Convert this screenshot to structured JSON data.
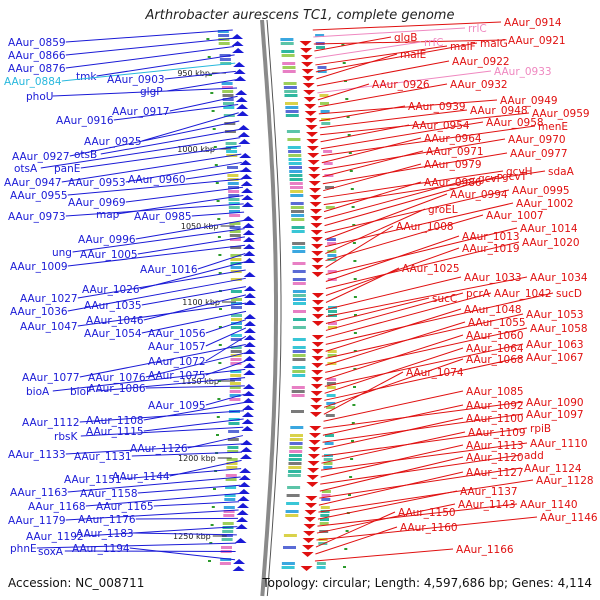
{
  "title": "Arthrobacter aurescens TC1, complete genome",
  "footer": {
    "accession": "Accession: NC_008711",
    "topology": "Topology: circular; Length: 4,597,686 bp; Genes: 4,114"
  },
  "colors": {
    "left_strand": "#1a1ad6",
    "right_strand": "#e01010",
    "rna_label": "#27b8dd",
    "pink_label": "#ef88c0",
    "backbone": "#8a8a8a",
    "tick_text": "#222222"
  },
  "kbp_ticks": [
    {
      "label": "950 kbp"
    },
    {
      "label": "1000 kbp"
    },
    {
      "label": "1050 kbp"
    },
    {
      "label": "1100 kbp"
    },
    {
      "label": "1150 kbp"
    },
    {
      "label": "1200 kbp"
    },
    {
      "label": "1250 kbp"
    }
  ],
  "left_labels": [
    {
      "text": "AAur_0859",
      "color": "left"
    },
    {
      "text": "AAur_0866",
      "color": "left"
    },
    {
      "text": "AAur_0876",
      "color": "left"
    },
    {
      "text": "tmk",
      "color": "left"
    },
    {
      "text": "AAur_0884",
      "color": "rna"
    },
    {
      "text": "AAur_0903",
      "color": "left"
    },
    {
      "text": "glgP",
      "color": "left"
    },
    {
      "text": "phoU",
      "color": "left"
    },
    {
      "text": "AAur_0917",
      "color": "left"
    },
    {
      "text": "AAur_0916",
      "color": "left"
    },
    {
      "text": "AAur_0925",
      "color": "left"
    },
    {
      "text": "AAur_0927",
      "color": "left"
    },
    {
      "text": "otsB",
      "color": "left"
    },
    {
      "text": "otsA",
      "color": "left"
    },
    {
      "text": "panE",
      "color": "left"
    },
    {
      "text": "AAur_0947",
      "color": "left"
    },
    {
      "text": "AAur_0953",
      "color": "left"
    },
    {
      "text": "AAur_0960",
      "color": "left"
    },
    {
      "text": "AAur_0955",
      "color": "left"
    },
    {
      "text": "AAur_0969",
      "color": "left"
    },
    {
      "text": "map",
      "color": "left"
    },
    {
      "text": "AAur_0973",
      "color": "left"
    },
    {
      "text": "AAur_0985",
      "color": "left"
    },
    {
      "text": "AAur_0996",
      "color": "left"
    },
    {
      "text": "ung",
      "color": "left"
    },
    {
      "text": "AAur_1005",
      "color": "left"
    },
    {
      "text": "AAur_1009",
      "color": "left"
    },
    {
      "text": "AAur_1016",
      "color": "left"
    },
    {
      "text": "AAur_1026",
      "color": "left"
    },
    {
      "text": "AAur_1027",
      "color": "left"
    },
    {
      "text": "AAur_1036",
      "color": "left"
    },
    {
      "text": "AAur_1035",
      "color": "left"
    },
    {
      "text": "AAur_1046",
      "color": "left"
    },
    {
      "text": "AAur_1047",
      "color": "left"
    },
    {
      "text": "AAur_1054",
      "color": "left"
    },
    {
      "text": "AAur_1056",
      "color": "left"
    },
    {
      "text": "AAur_1057",
      "color": "left"
    },
    {
      "text": "AAur_1072",
      "color": "left"
    },
    {
      "text": "AAur_1077",
      "color": "left"
    },
    {
      "text": "AAur_1076",
      "color": "left"
    },
    {
      "text": "AAur_1075",
      "color": "left"
    },
    {
      "text": "bioA",
      "color": "left"
    },
    {
      "text": "bioF",
      "color": "left"
    },
    {
      "text": "AAur_1086",
      "color": "left"
    },
    {
      "text": "AAur_1095",
      "color": "left"
    },
    {
      "text": "AAur_1108",
      "color": "left"
    },
    {
      "text": "AAur_1112",
      "color": "left"
    },
    {
      "text": "AAur_1115",
      "color": "left"
    },
    {
      "text": "rbsK",
      "color": "left"
    },
    {
      "text": "AAur_1126",
      "color": "left"
    },
    {
      "text": "AAur_1133",
      "color": "left"
    },
    {
      "text": "AAur_1131",
      "color": "left"
    },
    {
      "text": "AAur_1144",
      "color": "left"
    },
    {
      "text": "AAur_1151",
      "color": "left"
    },
    {
      "text": "AAur_1163",
      "color": "left"
    },
    {
      "text": "AAur_1158",
      "color": "left"
    },
    {
      "text": "AAur_1168",
      "color": "left"
    },
    {
      "text": "AAur_1165",
      "color": "left"
    },
    {
      "text": "AAur_1179",
      "color": "left"
    },
    {
      "text": "AAur_1176",
      "color": "left"
    },
    {
      "text": "AAur_1192",
      "color": "left"
    },
    {
      "text": "AAur_1183",
      "color": "left"
    },
    {
      "text": "phnE",
      "color": "left"
    },
    {
      "text": "soxA",
      "color": "left"
    },
    {
      "text": "AAur_1194",
      "color": "left"
    }
  ],
  "right_labels": [
    {
      "text": "AAur_0914",
      "color": "right"
    },
    {
      "text": "rrlC",
      "color": "pink"
    },
    {
      "text": "AAur_0921",
      "color": "right"
    },
    {
      "text": "glgB",
      "color": "right"
    },
    {
      "text": "rrfC",
      "color": "pink"
    },
    {
      "text": "malF",
      "color": "right"
    },
    {
      "text": "malG",
      "color": "right"
    },
    {
      "text": "malE",
      "color": "right"
    },
    {
      "text": "AAur_0922",
      "color": "right"
    },
    {
      "text": "AAur_0933",
      "color": "pink"
    },
    {
      "text": "AAur_0926",
      "color": "right"
    },
    {
      "text": "AAur_0932",
      "color": "right"
    },
    {
      "text": "AAur_0949",
      "color": "right"
    },
    {
      "text": "AAur_0939",
      "color": "right"
    },
    {
      "text": "AAur_0948",
      "color": "right"
    },
    {
      "text": "AAur_0959",
      "color": "right"
    },
    {
      "text": "AAur_0954",
      "color": "right"
    },
    {
      "text": "AAur_0958",
      "color": "right"
    },
    {
      "text": "menE",
      "color": "right"
    },
    {
      "text": "AAur_0964",
      "color": "right"
    },
    {
      "text": "AAur_0970",
      "color": "right"
    },
    {
      "text": "AAur_0971",
      "color": "right"
    },
    {
      "text": "AAur_0977",
      "color": "right"
    },
    {
      "text": "AAur_0979",
      "color": "right"
    },
    {
      "text": "gcvH",
      "color": "right"
    },
    {
      "text": "sdaA",
      "color": "right"
    },
    {
      "text": "AAur_0986",
      "color": "right"
    },
    {
      "text": "gcvP",
      "color": "right"
    },
    {
      "text": "gcvT",
      "color": "right"
    },
    {
      "text": "AAur_0995",
      "color": "right"
    },
    {
      "text": "AAur_0994",
      "color": "right"
    },
    {
      "text": "AAur_1002",
      "color": "right"
    },
    {
      "text": "groEL",
      "color": "right"
    },
    {
      "text": "AAur_1007",
      "color": "right"
    },
    {
      "text": "AAur_1008",
      "color": "right"
    },
    {
      "text": "AAur_1014",
      "color": "right"
    },
    {
      "text": "AAur_1013",
      "color": "right"
    },
    {
      "text": "AAur_1020",
      "color": "right"
    },
    {
      "text": "AAur_1019",
      "color": "right"
    },
    {
      "text": "AAur_1025",
      "color": "right"
    },
    {
      "text": "AAur_1033",
      "color": "right"
    },
    {
      "text": "AAur_1034",
      "color": "right"
    },
    {
      "text": "sucC",
      "color": "right"
    },
    {
      "text": "pcrA",
      "color": "right"
    },
    {
      "text": "AAur_1042",
      "color": "right"
    },
    {
      "text": "sucD",
      "color": "right"
    },
    {
      "text": "AAur_1048",
      "color": "right"
    },
    {
      "text": "AAur_1053",
      "color": "right"
    },
    {
      "text": "AAur_1055",
      "color": "right"
    },
    {
      "text": "AAur_1058",
      "color": "right"
    },
    {
      "text": "AAur_1060",
      "color": "right"
    },
    {
      "text": "AAur_1063",
      "color": "right"
    },
    {
      "text": "AAur_1064",
      "color": "right"
    },
    {
      "text": "AAur_1067",
      "color": "right"
    },
    {
      "text": "AAur_1068",
      "color": "right"
    },
    {
      "text": "AAur_1074",
      "color": "right"
    },
    {
      "text": "AAur_1085",
      "color": "right"
    },
    {
      "text": "AAur_1090",
      "color": "right"
    },
    {
      "text": "AAur_1092",
      "color": "right"
    },
    {
      "text": "AAur_1097",
      "color": "right"
    },
    {
      "text": "AAur_1100",
      "color": "right"
    },
    {
      "text": "rpiB",
      "color": "right"
    },
    {
      "text": "AAur_1109",
      "color": "right"
    },
    {
      "text": "AAur_1110",
      "color": "right"
    },
    {
      "text": "AAur_1113",
      "color": "right"
    },
    {
      "text": "add",
      "color": "right"
    },
    {
      "text": "AAur_1120",
      "color": "right"
    },
    {
      "text": "AAur_1124",
      "color": "right"
    },
    {
      "text": "AAur_1127",
      "color": "right"
    },
    {
      "text": "AAur_1128",
      "color": "right"
    },
    {
      "text": "AAur_1137",
      "color": "right"
    },
    {
      "text": "AAur_1140",
      "color": "right"
    },
    {
      "text": "AAur_1143",
      "color": "right"
    },
    {
      "text": "AAur_1146",
      "color": "right"
    },
    {
      "text": "AAur_1150",
      "color": "right"
    },
    {
      "text": "AAur_1160",
      "color": "right"
    },
    {
      "text": "AAur_1166",
      "color": "right"
    }
  ]
}
